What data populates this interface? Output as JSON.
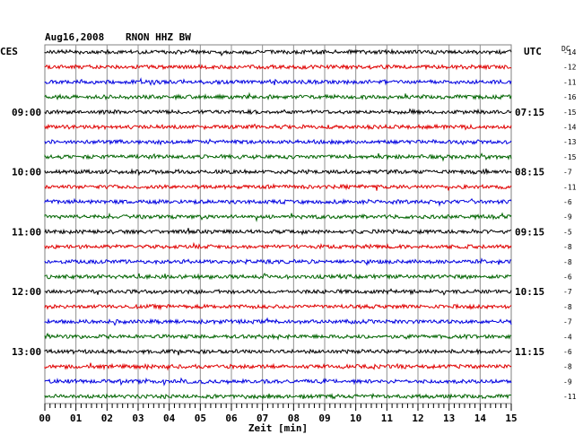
{
  "header": {
    "date": "Aug16,2008",
    "station": "RNON HHZ BW",
    "left_tz": "CES",
    "right_tz": "UTC",
    "dc_label": "DC"
  },
  "chart_data": {
    "type": "line",
    "title": "Aug16,2008  RNON HHZ BW",
    "xlabel": "Zeit [min]",
    "x_ticks": [
      "00",
      "01",
      "02",
      "03",
      "04",
      "05",
      "06",
      "07",
      "08",
      "09",
      "10",
      "11",
      "12",
      "13",
      "14",
      "15"
    ],
    "xlim": [
      0,
      15
    ],
    "trace_colors": [
      "#000000",
      "#e00000",
      "#0000e0",
      "#006400"
    ],
    "left_time_labels": [
      {
        "trace": 4,
        "label": "09:00"
      },
      {
        "trace": 8,
        "label": "10:00"
      },
      {
        "trace": 12,
        "label": "11:00"
      },
      {
        "trace": 16,
        "label": "12:00"
      },
      {
        "trace": 20,
        "label": "13:00"
      }
    ],
    "right_time_labels": [
      {
        "trace": 4,
        "label": "07:15"
      },
      {
        "trace": 8,
        "label": "08:15"
      },
      {
        "trace": 12,
        "label": "09:15"
      },
      {
        "trace": 16,
        "label": "10:15"
      },
      {
        "trace": 20,
        "label": "11:15"
      }
    ],
    "dc_offsets": [
      "-14",
      "-12",
      "-11",
      "-16",
      "-15",
      "-14",
      "-13",
      "-15",
      "-7",
      "-11",
      "-6",
      "-9",
      "-5",
      "-8",
      "-8",
      "-6",
      "-7",
      "-8",
      "-7",
      "-4",
      "-6",
      "-8",
      "-9",
      "-11"
    ],
    "grid": true
  }
}
